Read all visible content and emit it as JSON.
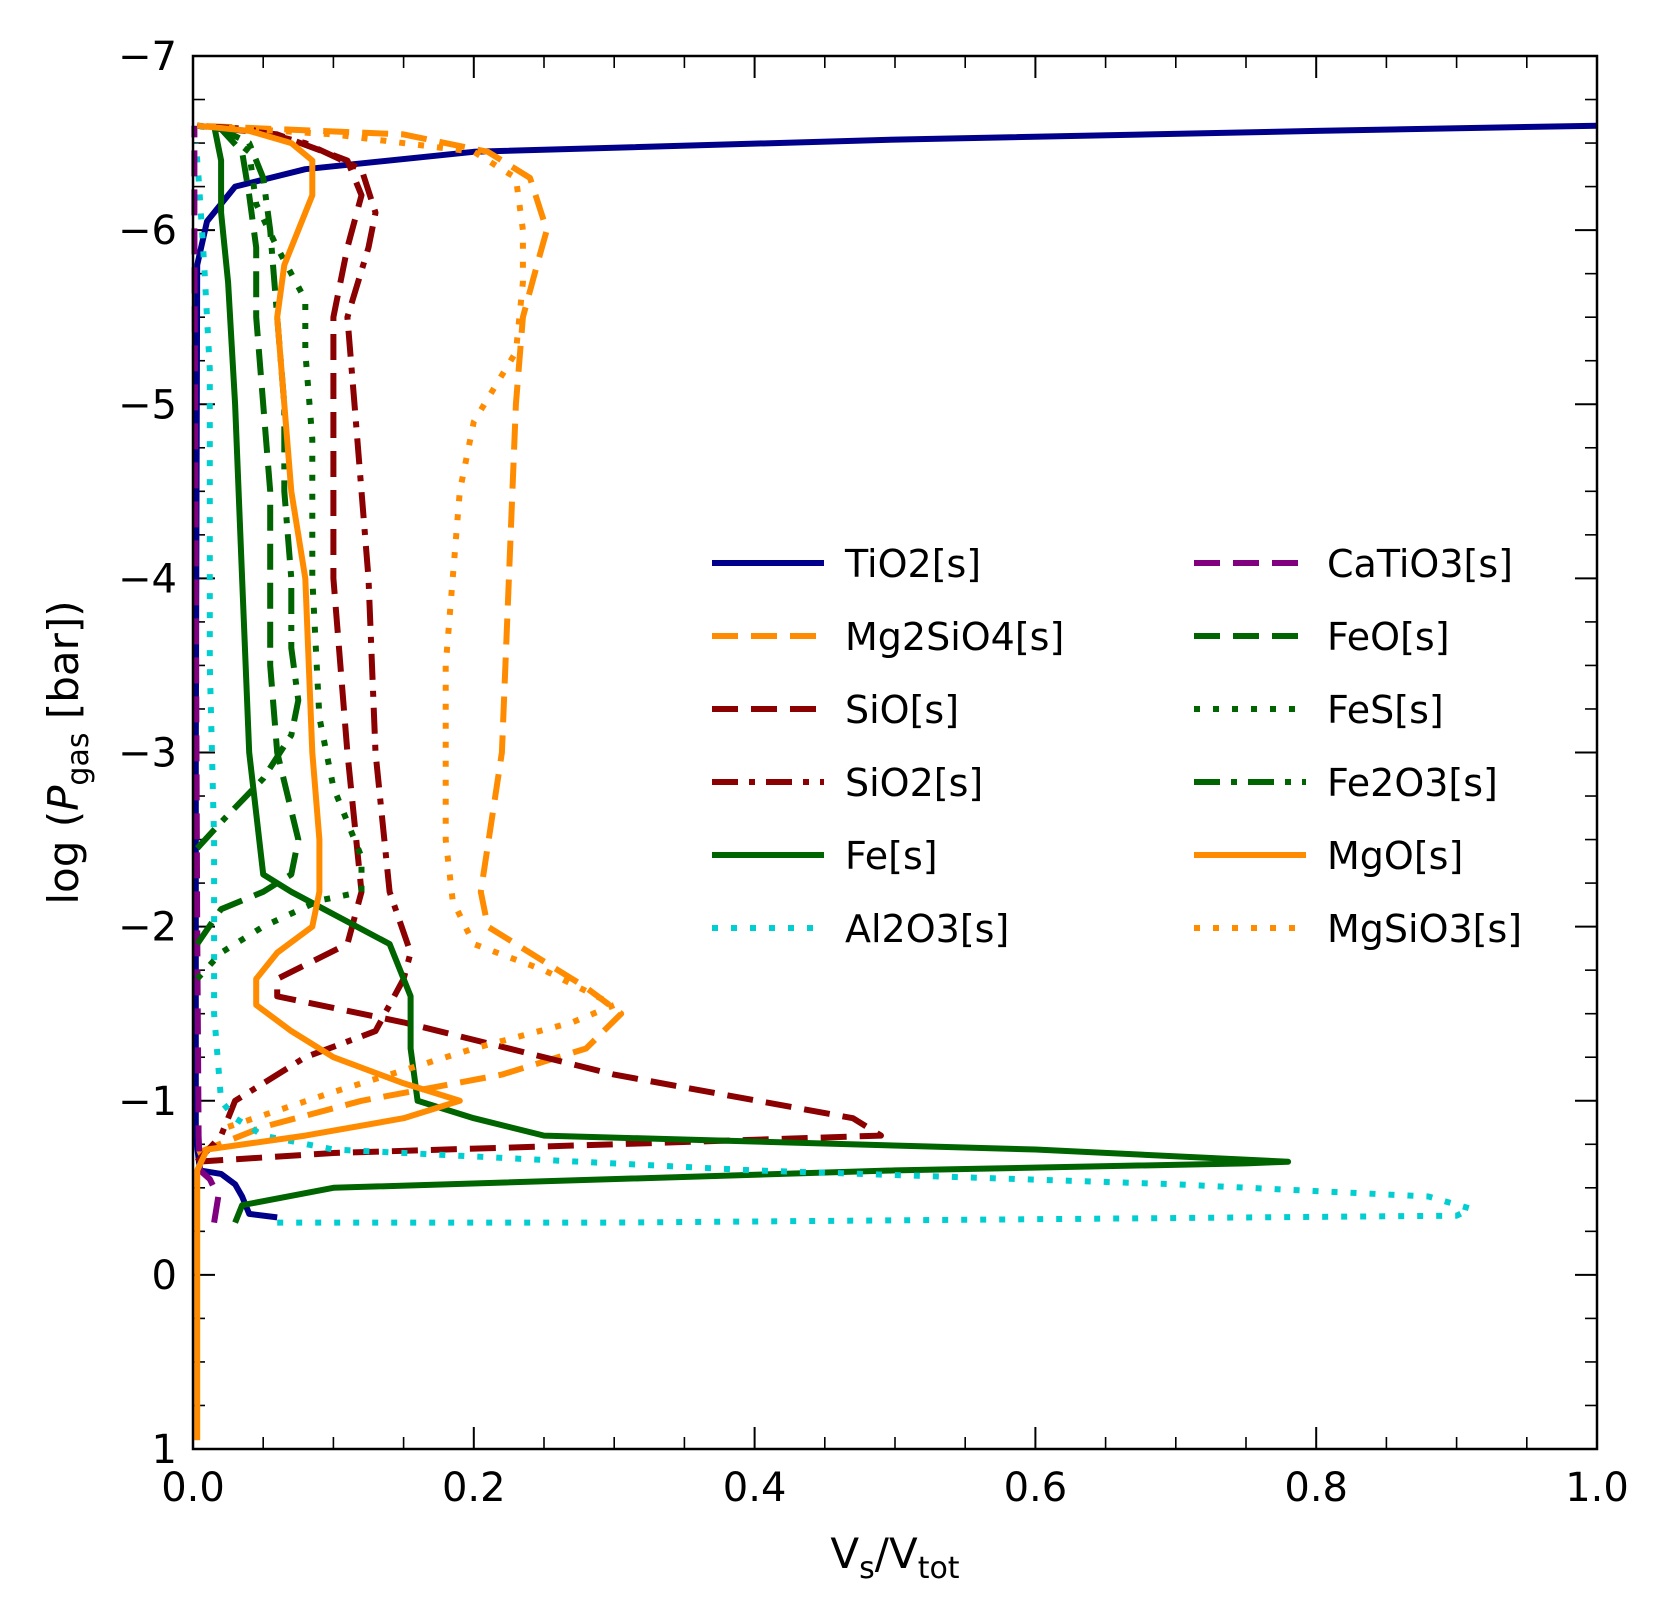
{
  "chart_data": {
    "type": "line",
    "title": "",
    "xlabel": "Vs/Vtot",
    "xlabel_parts": {
      "base1": "V",
      "sub1": "s",
      "mid": "/V",
      "sub2": "tot"
    },
    "ylabel": "log (Pgas [bar])",
    "ylabel_parts": {
      "pre": "log (",
      "var": "P",
      "sub": "gas",
      "post": " [bar])"
    },
    "xlim": [
      0.0,
      1.0
    ],
    "ylim": [
      1,
      -7
    ],
    "x_ticks": [
      "0.0",
      "0.2",
      "0.4",
      "0.6",
      "0.8",
      "1.0"
    ],
    "y_ticks": [
      "−7",
      "−6",
      "−5",
      "−4",
      "−3",
      "−2",
      "−1",
      "0",
      "1"
    ],
    "legend_position": "center-right, two columns",
    "series": [
      {
        "name": "TiO2[s]",
        "color": "#00008b",
        "style": "solid",
        "points": [
          [
            0.06,
            -0.33
          ],
          [
            0.04,
            -0.35
          ],
          [
            0.035,
            -0.45
          ],
          [
            0.03,
            -0.52
          ],
          [
            0.02,
            -0.58
          ],
          [
            0.005,
            -0.6
          ],
          [
            0.002,
            -0.8
          ],
          [
            0.002,
            -3
          ],
          [
            0.003,
            -5.8
          ],
          [
            0.01,
            -6.05
          ],
          [
            0.03,
            -6.25
          ],
          [
            0.08,
            -6.35
          ],
          [
            0.2,
            -6.45
          ],
          [
            0.5,
            -6.52
          ],
          [
            0.8,
            -6.57
          ],
          [
            1.0,
            -6.6
          ]
        ]
      },
      {
        "name": "Mg2SiO4[s]",
        "color": "#ff8c00",
        "style": "dashed",
        "points": [
          [
            0.003,
            -0.7
          ],
          [
            0.05,
            -0.85
          ],
          [
            0.12,
            -1.0
          ],
          [
            0.22,
            -1.15
          ],
          [
            0.28,
            -1.3
          ],
          [
            0.305,
            -1.5
          ],
          [
            0.28,
            -1.65
          ],
          [
            0.21,
            -2.0
          ],
          [
            0.205,
            -2.2
          ],
          [
            0.22,
            -3.0
          ],
          [
            0.225,
            -4.0
          ],
          [
            0.23,
            -5.0
          ],
          [
            0.235,
            -5.5
          ],
          [
            0.245,
            -5.8
          ],
          [
            0.252,
            -6.0
          ],
          [
            0.24,
            -6.3
          ],
          [
            0.21,
            -6.45
          ],
          [
            0.15,
            -6.55
          ],
          [
            0.003,
            -6.6
          ]
        ]
      },
      {
        "name": "SiO[s]",
        "color": "#8b0000",
        "style": "dashed",
        "points": [
          [
            0.003,
            -0.65
          ],
          [
            0.1,
            -0.7
          ],
          [
            0.3,
            -0.75
          ],
          [
            0.49,
            -0.8
          ],
          [
            0.47,
            -0.9
          ],
          [
            0.3,
            -1.15
          ],
          [
            0.15,
            -1.45
          ],
          [
            0.06,
            -1.6
          ],
          [
            0.06,
            -1.7
          ],
          [
            0.11,
            -1.9
          ],
          [
            0.12,
            -2.2
          ],
          [
            0.11,
            -3.0
          ],
          [
            0.1,
            -4.0
          ],
          [
            0.1,
            -5.0
          ],
          [
            0.1,
            -5.5
          ],
          [
            0.11,
            -5.9
          ],
          [
            0.12,
            -6.2
          ],
          [
            0.11,
            -6.4
          ],
          [
            0.06,
            -6.55
          ],
          [
            0.003,
            -6.6
          ]
        ]
      },
      {
        "name": "SiO2[s]",
        "color": "#8b0000",
        "style": "dashdot",
        "points": [
          [
            0.003,
            -0.65
          ],
          [
            0.02,
            -0.8
          ],
          [
            0.03,
            -1.0
          ],
          [
            0.08,
            -1.25
          ],
          [
            0.13,
            -1.4
          ],
          [
            0.15,
            -1.7
          ],
          [
            0.155,
            -1.85
          ],
          [
            0.14,
            -2.2
          ],
          [
            0.13,
            -3.0
          ],
          [
            0.125,
            -4.0
          ],
          [
            0.115,
            -5.0
          ],
          [
            0.11,
            -5.5
          ],
          [
            0.125,
            -5.9
          ],
          [
            0.13,
            -6.1
          ],
          [
            0.12,
            -6.35
          ],
          [
            0.08,
            -6.5
          ],
          [
            0.04,
            -6.58
          ],
          [
            0.003,
            -6.6
          ]
        ]
      },
      {
        "name": "Fe[s]",
        "color": "#006400",
        "style": "solid",
        "points": [
          [
            0.03,
            -0.3
          ],
          [
            0.035,
            -0.4
          ],
          [
            0.1,
            -0.5
          ],
          [
            0.5,
            -0.6
          ],
          [
            0.75,
            -0.64
          ],
          [
            0.78,
            -0.65
          ],
          [
            0.6,
            -0.72
          ],
          [
            0.25,
            -0.8
          ],
          [
            0.2,
            -0.9
          ],
          [
            0.16,
            -1.0
          ],
          [
            0.155,
            -1.3
          ],
          [
            0.155,
            -1.6
          ],
          [
            0.14,
            -1.9
          ],
          [
            0.07,
            -2.2
          ],
          [
            0.05,
            -2.3
          ],
          [
            0.04,
            -3.0
          ],
          [
            0.035,
            -4.0
          ],
          [
            0.03,
            -5.0
          ],
          [
            0.025,
            -5.7
          ],
          [
            0.02,
            -6.1
          ],
          [
            0.02,
            -6.4
          ],
          [
            0.015,
            -6.6
          ]
        ]
      },
      {
        "name": "Al2O3[s]",
        "color": "#00ced1",
        "style": "dotted",
        "points": [
          [
            0.06,
            -0.3
          ],
          [
            0.3,
            -0.3
          ],
          [
            0.6,
            -0.32
          ],
          [
            0.9,
            -0.34
          ],
          [
            0.91,
            -0.38
          ],
          [
            0.88,
            -0.45
          ],
          [
            0.7,
            -0.52
          ],
          [
            0.4,
            -0.6
          ],
          [
            0.1,
            -0.72
          ],
          [
            0.05,
            -0.8
          ],
          [
            0.03,
            -0.9
          ],
          [
            0.02,
            -1.0
          ],
          [
            0.015,
            -1.5
          ],
          [
            0.015,
            -2.5
          ],
          [
            0.012,
            -3.5
          ],
          [
            0.012,
            -4.5
          ],
          [
            0.012,
            -5.2
          ],
          [
            0.008,
            -5.8
          ],
          [
            0.004,
            -6.3
          ],
          [
            0.002,
            -6.5
          ]
        ]
      },
      {
        "name": "CaTiO3[s]",
        "color": "#800080",
        "style": "dashed",
        "points": [
          [
            0.015,
            -0.3
          ],
          [
            0.018,
            -0.45
          ],
          [
            0.012,
            -0.55
          ],
          [
            0.005,
            -0.6
          ],
          [
            0.004,
            -0.8
          ],
          [
            0.003,
            -2.0
          ],
          [
            0.002,
            -4.0
          ],
          [
            0.001,
            -6.0
          ],
          [
            0.001,
            -6.6
          ]
        ]
      },
      {
        "name": "FeO[s]",
        "color": "#006400",
        "style": "dashed",
        "points": [
          [
            0.003,
            -1.9
          ],
          [
            0.02,
            -2.1
          ],
          [
            0.05,
            -2.2
          ],
          [
            0.07,
            -2.3
          ],
          [
            0.075,
            -2.5
          ],
          [
            0.06,
            -3.0
          ],
          [
            0.055,
            -3.5
          ],
          [
            0.055,
            -4.5
          ],
          [
            0.05,
            -5.0
          ],
          [
            0.045,
            -5.5
          ],
          [
            0.045,
            -5.9
          ],
          [
            0.04,
            -6.2
          ],
          [
            0.035,
            -6.45
          ],
          [
            0.02,
            -6.58
          ],
          [
            0.003,
            -6.6
          ]
        ]
      },
      {
        "name": "FeS[s]",
        "color": "#006400",
        "style": "dotted",
        "points": [
          [
            0.003,
            -1.7
          ],
          [
            0.02,
            -1.85
          ],
          [
            0.05,
            -2.0
          ],
          [
            0.09,
            -2.15
          ],
          [
            0.12,
            -2.2
          ],
          [
            0.12,
            -2.4
          ],
          [
            0.1,
            -2.8
          ],
          [
            0.09,
            -3.2
          ],
          [
            0.085,
            -4.0
          ],
          [
            0.085,
            -4.8
          ],
          [
            0.08,
            -5.3
          ],
          [
            0.08,
            -5.6
          ],
          [
            0.06,
            -5.9
          ],
          [
            0.045,
            -6.15
          ],
          [
            0.04,
            -6.45
          ],
          [
            0.02,
            -6.58
          ],
          [
            0.003,
            -6.6
          ]
        ]
      },
      {
        "name": "Fe2O3[s]",
        "color": "#006400",
        "style": "dashdot",
        "points": [
          [
            0.003,
            -2.45
          ],
          [
            0.02,
            -2.6
          ],
          [
            0.05,
            -2.85
          ],
          [
            0.07,
            -3.1
          ],
          [
            0.075,
            -3.3
          ],
          [
            0.07,
            -3.6
          ],
          [
            0.07,
            -4.0
          ],
          [
            0.065,
            -4.5
          ],
          [
            0.065,
            -5.0
          ],
          [
            0.06,
            -5.5
          ],
          [
            0.055,
            -6.0
          ],
          [
            0.05,
            -6.3
          ],
          [
            0.04,
            -6.5
          ],
          [
            0.02,
            -6.58
          ],
          [
            0.003,
            -6.6
          ]
        ]
      },
      {
        "name": "MgO[s]",
        "color": "#ff8c00",
        "style": "solid",
        "points": [
          [
            0.003,
            0.95
          ],
          [
            0.003,
            0.0
          ],
          [
            0.003,
            -0.6
          ],
          [
            0.01,
            -0.72
          ],
          [
            0.08,
            -0.8
          ],
          [
            0.15,
            -0.9
          ],
          [
            0.19,
            -1.0
          ],
          [
            0.15,
            -1.1
          ],
          [
            0.1,
            -1.25
          ],
          [
            0.07,
            -1.4
          ],
          [
            0.045,
            -1.55
          ],
          [
            0.045,
            -1.7
          ],
          [
            0.06,
            -1.85
          ],
          [
            0.085,
            -2.0
          ],
          [
            0.09,
            -2.2
          ],
          [
            0.09,
            -2.5
          ],
          [
            0.085,
            -3.0
          ],
          [
            0.08,
            -4.0
          ],
          [
            0.07,
            -4.5
          ],
          [
            0.065,
            -5.0
          ],
          [
            0.06,
            -5.5
          ],
          [
            0.065,
            -5.8
          ],
          [
            0.075,
            -6.0
          ],
          [
            0.085,
            -6.2
          ],
          [
            0.085,
            -6.4
          ],
          [
            0.07,
            -6.5
          ],
          [
            0.04,
            -6.57
          ],
          [
            0.003,
            -6.6
          ]
        ]
      },
      {
        "name": "MgSiO3[s]",
        "color": "#ff8c00",
        "style": "dotted",
        "points": [
          [
            0.025,
            -0.85
          ],
          [
            0.1,
            -1.05
          ],
          [
            0.2,
            -1.3
          ],
          [
            0.27,
            -1.45
          ],
          [
            0.3,
            -1.55
          ],
          [
            0.25,
            -1.75
          ],
          [
            0.2,
            -1.9
          ],
          [
            0.185,
            -2.15
          ],
          [
            0.18,
            -2.5
          ],
          [
            0.18,
            -3.0
          ],
          [
            0.18,
            -3.5
          ],
          [
            0.185,
            -4.0
          ],
          [
            0.19,
            -4.5
          ],
          [
            0.2,
            -4.9
          ],
          [
            0.23,
            -5.3
          ],
          [
            0.235,
            -5.7
          ],
          [
            0.235,
            -6.0
          ],
          [
            0.23,
            -6.3
          ],
          [
            0.2,
            -6.45
          ],
          [
            0.1,
            -6.55
          ],
          [
            0.003,
            -6.6
          ]
        ]
      }
    ]
  }
}
